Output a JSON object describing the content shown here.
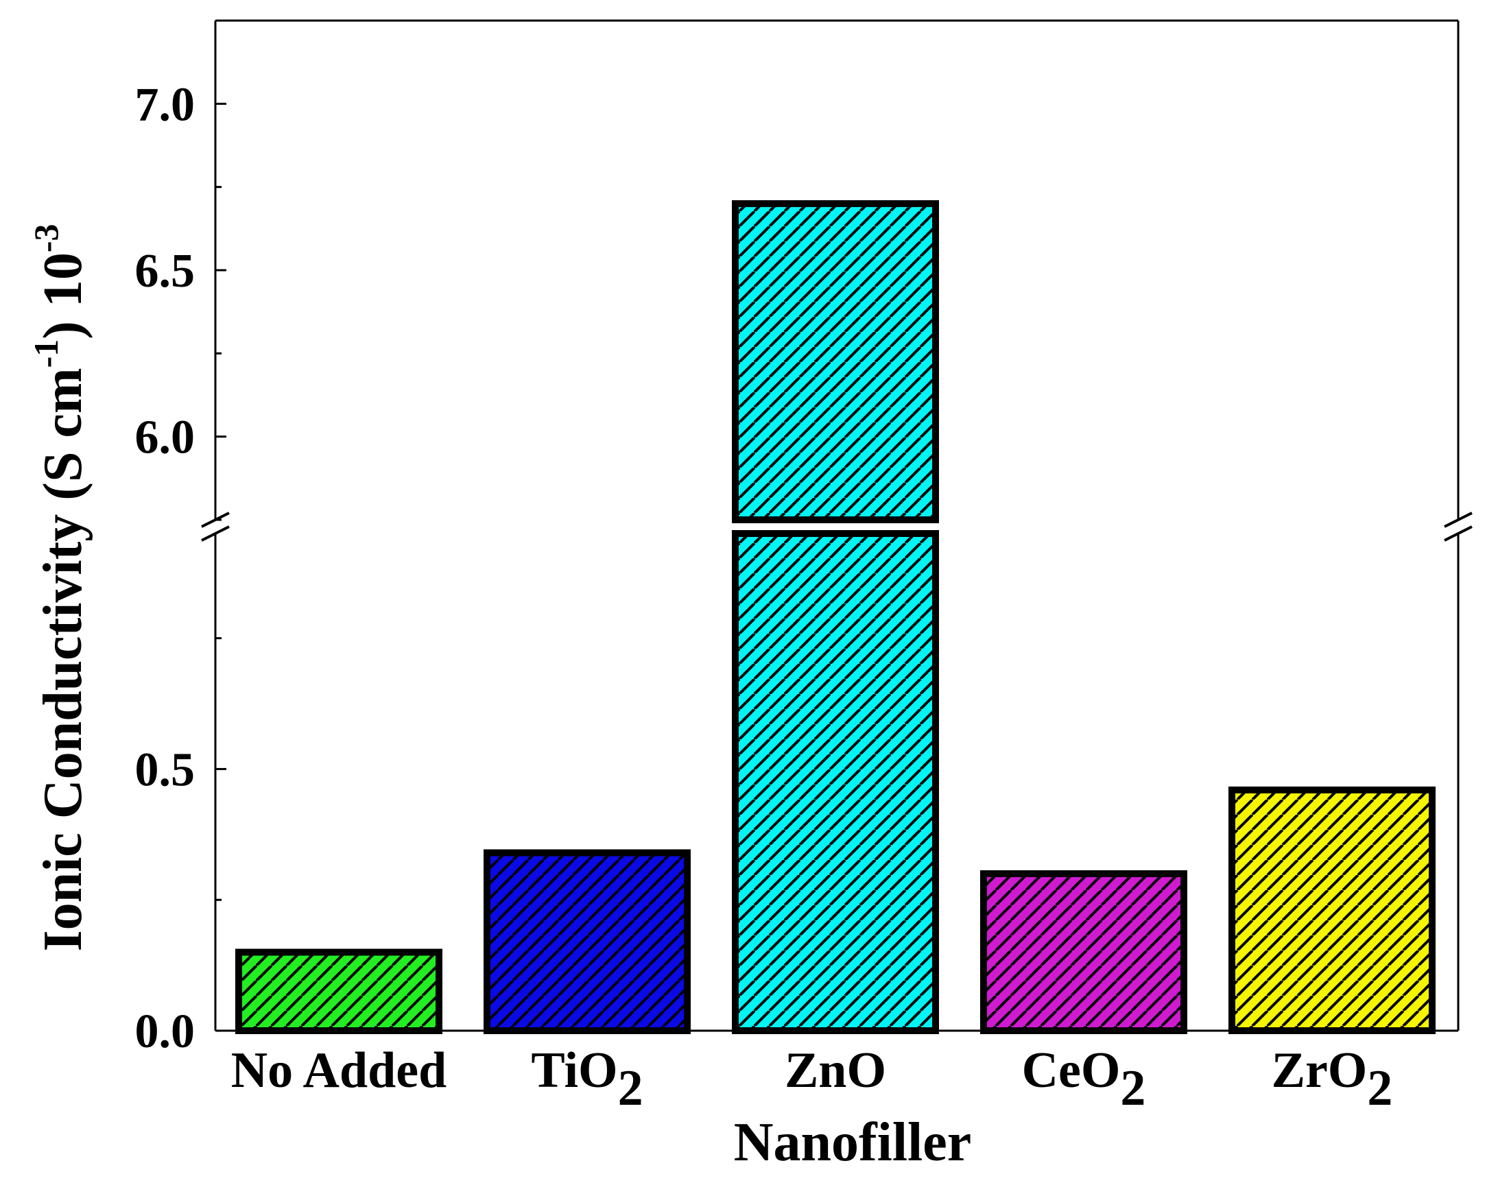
{
  "chart_data": {
    "type": "bar",
    "xlabel": "Nanofiller",
    "ylabel": {
      "main": "Ionic Conductivity (S cm",
      "sup1": "-1",
      "mid": ") 10",
      "sup2": "-3"
    },
    "categories": [
      {
        "label": "No Added",
        "sub": ""
      },
      {
        "label": "TiO",
        "sub": "2"
      },
      {
        "label": "ZnO",
        "sub": ""
      },
      {
        "label": "CeO",
        "sub": "2"
      },
      {
        "label": "ZrO",
        "sub": "2"
      }
    ],
    "values": [
      0.15,
      0.34,
      6.7,
      0.3,
      0.46
    ],
    "colors": [
      "#22ee22",
      "#0a0ae6",
      "#00f5f5",
      "#d01ad0",
      "#f5f500"
    ],
    "hatch": "diagonal black lines",
    "axis_break": {
      "lower_range": [
        0,
        0.95
      ],
      "upper_range": [
        5.75,
        7.25
      ]
    },
    "yticks_lower": [
      {
        "value": 0.0,
        "label": "0.0"
      },
      {
        "value": 0.5,
        "label": "0.5"
      }
    ],
    "yticks_upper": [
      {
        "value": 6.0,
        "label": "6.0"
      },
      {
        "value": 6.5,
        "label": "6.5"
      },
      {
        "value": 7.0,
        "label": "7.0"
      }
    ],
    "minor_ticks_lower": [
      0.25,
      0.75
    ],
    "minor_ticks_upper": [
      5.75,
      6.25,
      6.75
    ],
    "grid": false,
    "legend": "none"
  }
}
